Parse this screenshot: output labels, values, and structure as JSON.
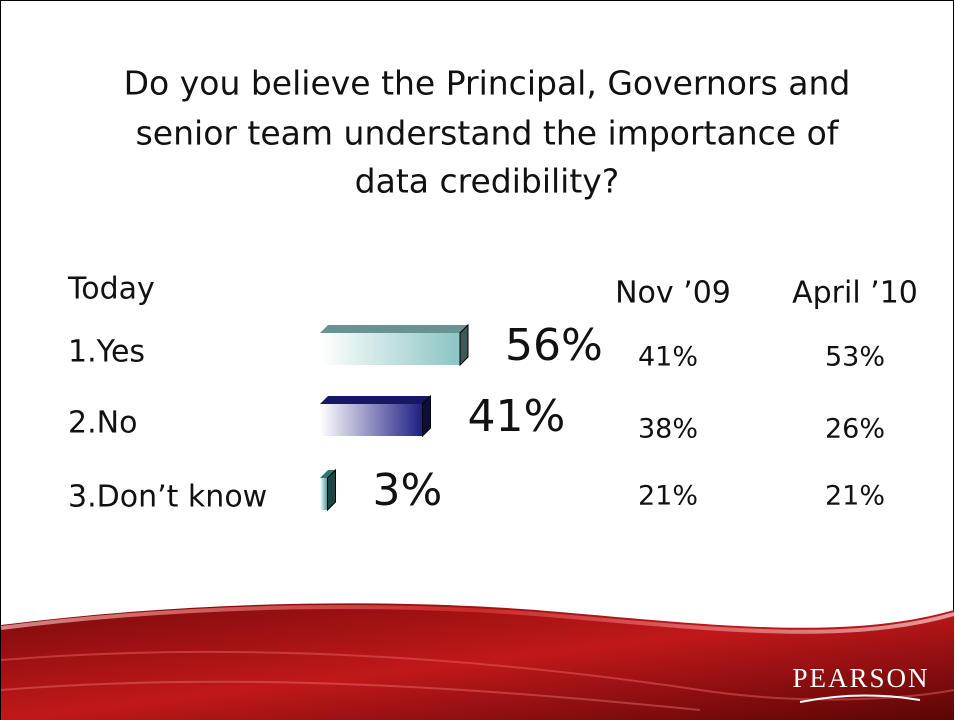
{
  "chart_data": {
    "type": "bar",
    "title": [
      "Do you believe the Principal, Governors and",
      "senior team understand the importance of",
      "data credibility?"
    ],
    "categories": [
      "1.Yes",
      "2.No",
      "3.Don’t know"
    ],
    "series": [
      {
        "name": "Today",
        "values": [
          56,
          41,
          3
        ],
        "value_labels": [
          "56%",
          "41%",
          "3%"
        ],
        "colors": [
          "#8cc4c4",
          "#1e1e84",
          "#3f9c9c"
        ]
      },
      {
        "name": "Nov ’09",
        "values": [
          41,
          38,
          21
        ],
        "value_labels": [
          "41%",
          "38%",
          "21%"
        ]
      },
      {
        "name": "April ’10",
        "values": [
          53,
          26,
          21
        ],
        "value_labels": [
          "53%",
          "26%",
          "21%"
        ]
      }
    ]
  },
  "logo": "PEARSON"
}
